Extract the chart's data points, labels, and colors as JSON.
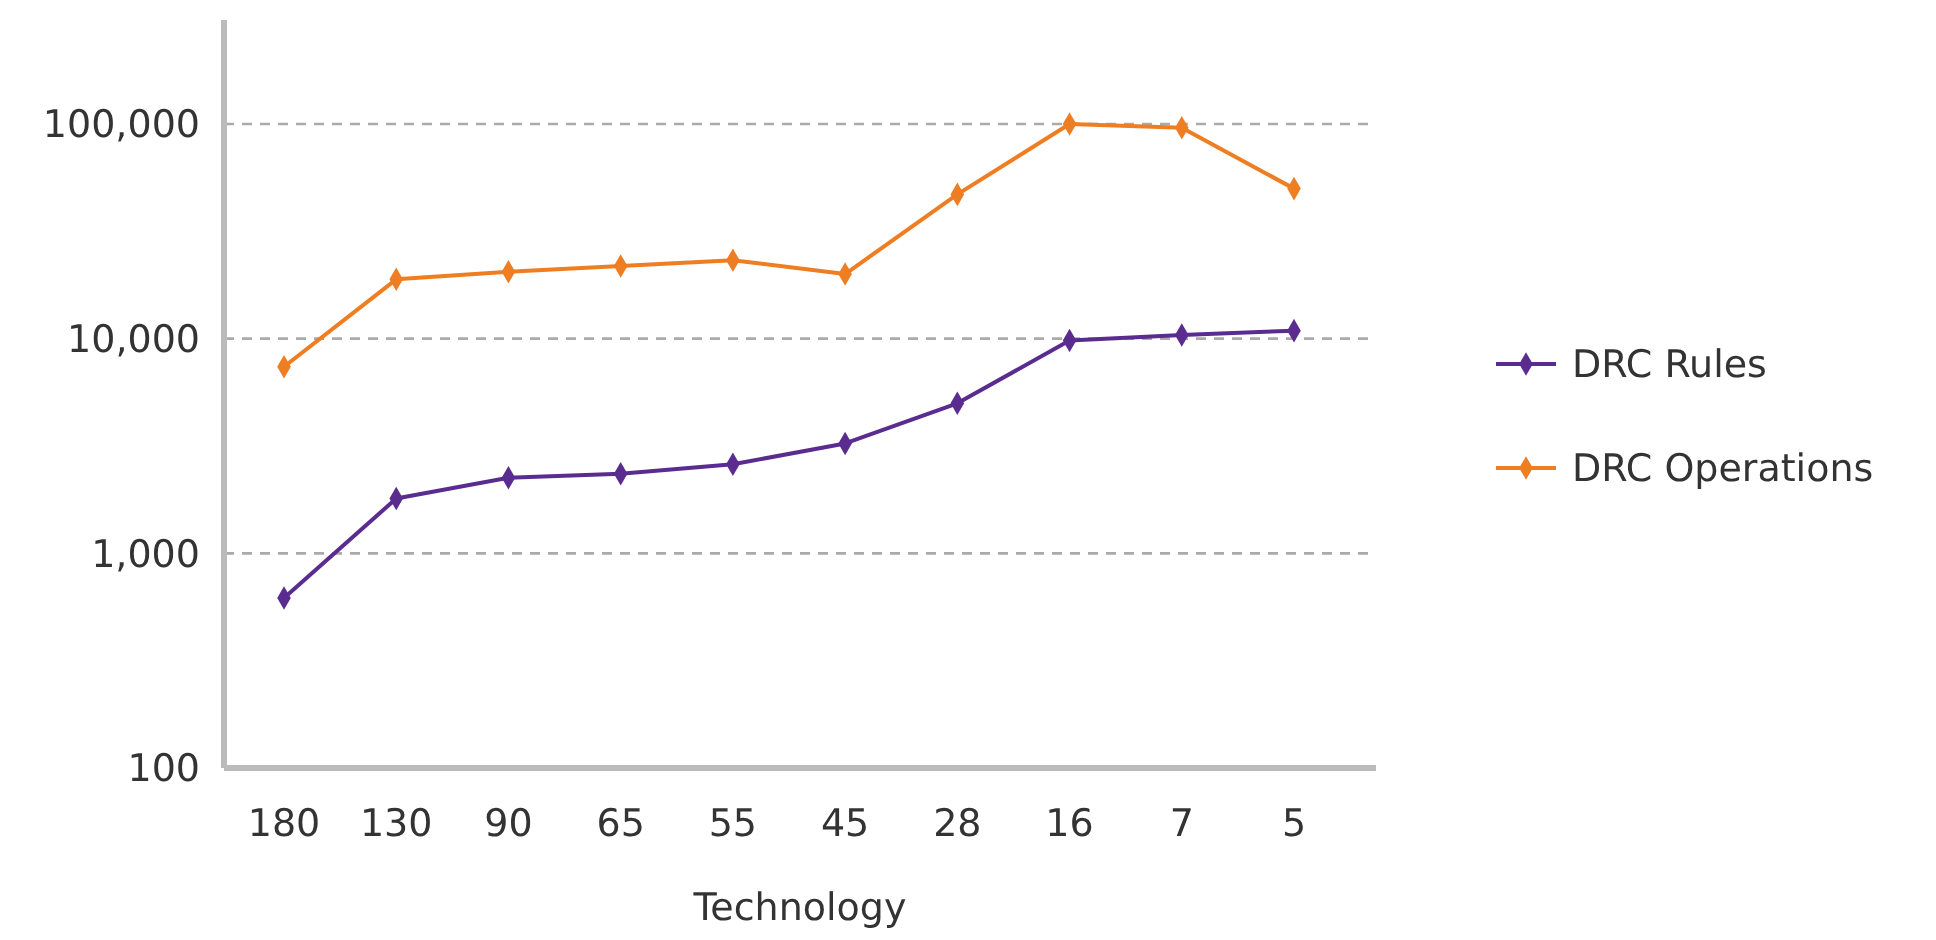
{
  "chart_data": {
    "type": "line",
    "xlabel": "Technology",
    "categories": [
      "180",
      "130",
      "90",
      "65",
      "55",
      "45",
      "28",
      "16",
      "7",
      "5"
    ],
    "series": [
      {
        "name": "DRC Rules",
        "color": "#5b2c8f",
        "values": [
          620,
          1800,
          2250,
          2350,
          2600,
          3250,
          5000,
          9800,
          10400,
          10900
        ]
      },
      {
        "name": "DRC Operations",
        "color": "#ef7d22",
        "values": [
          7400,
          18900,
          20500,
          21800,
          23200,
          20000,
          47000,
          100000,
          96000,
          50000
        ]
      }
    ],
    "log": "y",
    "ylim": [
      100,
      100000
    ],
    "yticks": [
      100,
      {
        "value": 1000,
        "label": "1,000"
      },
      {
        "value": 10000,
        "label": "10,000"
      },
      {
        "value": 100000,
        "label": "100,000"
      }
    ],
    "grid": "y",
    "legend": "right",
    "marker": "diamond",
    "line_style": "solid"
  }
}
